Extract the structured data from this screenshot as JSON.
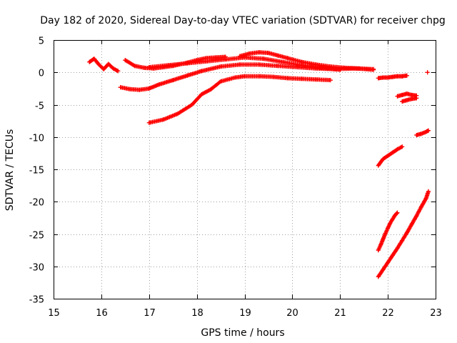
{
  "chart_data": {
    "type": "scatter",
    "title": "Day 182 of 2020, Sidereal Day-to-day VTEC variation (SDTVAR) for receiver chpg",
    "xlabel": "GPS time / hours",
    "ylabel": "SDTVAR / TECUs",
    "xlim": [
      15,
      23
    ],
    "ylim": [
      -35,
      5
    ],
    "xticks": [
      "15",
      "16",
      "17",
      "18",
      "19",
      "20",
      "21",
      "22",
      "23"
    ],
    "yticks": [
      "5",
      "0",
      "-5",
      "-10",
      "-15",
      "-20",
      "-25",
      "-30",
      "-35"
    ],
    "grid": true,
    "marker": "+",
    "color": "#ff0000",
    "series": [
      {
        "x": [
          15.75,
          15.85,
          15.95,
          16.05,
          16.15,
          16.25,
          16.35
        ],
        "y": [
          1.6,
          2.1,
          1.2,
          0.5,
          1.3,
          0.6,
          0.2
        ]
      },
      {
        "x": [
          16.5,
          16.7,
          16.9,
          17.1,
          17.3,
          17.5,
          17.8,
          18.0,
          18.2,
          18.4,
          18.6
        ],
        "y": [
          1.9,
          1.0,
          0.7,
          0.6,
          0.8,
          1.0,
          1.5,
          1.9,
          2.2,
          2.3,
          2.4
        ]
      },
      {
        "x": [
          16.4,
          16.6,
          16.8,
          17.0,
          17.2,
          17.5,
          17.8,
          18.1,
          18.5,
          18.9,
          19.3,
          19.7,
          20.1,
          20.5,
          20.9,
          21.3,
          21.7
        ],
        "y": [
          -2.3,
          -2.6,
          -2.7,
          -2.5,
          -1.9,
          -1.2,
          -0.5,
          0.2,
          0.9,
          1.2,
          1.2,
          1.0,
          0.8,
          0.6,
          0.5,
          0.6,
          0.5
        ]
      },
      {
        "x": [
          17.0,
          17.3,
          17.6,
          17.9,
          18.1,
          18.3,
          18.5,
          18.8,
          19.0,
          19.3,
          19.6,
          19.9,
          20.2,
          20.5,
          20.8
        ],
        "y": [
          -7.8,
          -7.3,
          -6.4,
          -5.0,
          -3.4,
          -2.6,
          -1.4,
          -0.8,
          -0.6,
          -0.6,
          -0.7,
          -0.9,
          -1.0,
          -1.1,
          -1.2
        ]
      },
      {
        "x": [
          17.0,
          17.4,
          17.8,
          18.2,
          18.6,
          19.0,
          19.4,
          19.8,
          20.2,
          20.6,
          21.0
        ],
        "y": [
          0.8,
          1.1,
          1.4,
          1.7,
          2.0,
          2.3,
          2.1,
          1.6,
          1.1,
          0.7,
          0.4
        ]
      },
      {
        "x": [
          18.9,
          19.1,
          19.3,
          19.5,
          19.7,
          19.9,
          20.2,
          20.5,
          20.8,
          21.1,
          21.4,
          21.7
        ],
        "y": [
          2.5,
          2.9,
          3.1,
          3.0,
          2.6,
          2.2,
          1.6,
          1.2,
          0.9,
          0.7,
          0.6,
          0.4
        ]
      },
      {
        "x": [
          21.8,
          21.9,
          22.0,
          22.1,
          22.2,
          22.3,
          22.4
        ],
        "y": [
          -0.9,
          -0.8,
          -0.8,
          -0.7,
          -0.6,
          -0.6,
          -0.5
        ]
      },
      {
        "x": [
          22.2,
          22.3,
          22.4,
          22.5,
          22.6
        ],
        "y": [
          -3.7,
          -3.5,
          -3.3,
          -3.5,
          -3.6
        ]
      },
      {
        "x": [
          22.3,
          22.4,
          22.5,
          22.6
        ],
        "y": [
          -4.5,
          -4.3,
          -4.1,
          -4.0
        ]
      },
      {
        "x": [
          22.6,
          22.7,
          22.8,
          22.85
        ],
        "y": [
          -9.7,
          -9.5,
          -9.2,
          -9.0
        ]
      },
      {
        "x": [
          21.8,
          21.9,
          22.0,
          22.1,
          22.2,
          22.3
        ],
        "y": [
          -14.4,
          -13.4,
          -12.9,
          -12.4,
          -11.9,
          -11.5
        ]
      },
      {
        "x": [
          21.8,
          21.85,
          21.9,
          21.95,
          22.0,
          22.05,
          22.1,
          22.15,
          22.2
        ],
        "y": [
          -27.5,
          -26.7,
          -25.8,
          -24.9,
          -24.1,
          -23.3,
          -22.7,
          -22.1,
          -21.7
        ]
      },
      {
        "x": [
          21.8,
          21.9,
          22.0,
          22.1,
          22.2,
          22.3,
          22.4,
          22.5,
          22.6,
          22.7,
          22.8,
          22.85
        ],
        "y": [
          -31.6,
          -30.5,
          -29.4,
          -28.3,
          -27.2,
          -26.0,
          -24.8,
          -23.5,
          -22.2,
          -20.8,
          -19.5,
          -18.4
        ]
      },
      {
        "x": [
          22.83
        ],
        "y": [
          0.0
        ]
      }
    ]
  }
}
